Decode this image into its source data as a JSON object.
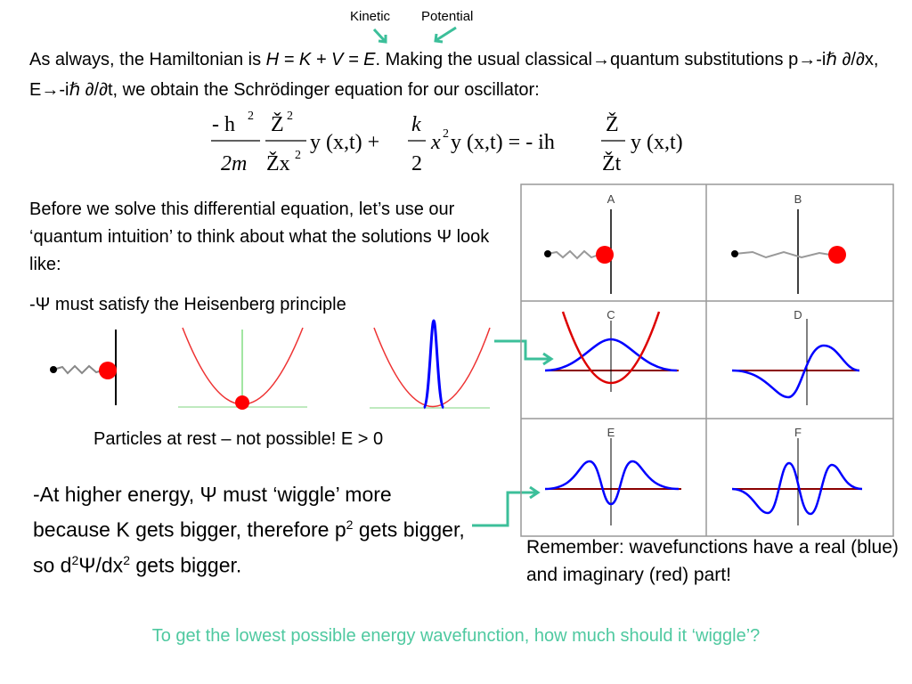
{
  "annotations": {
    "kinetic": "Kinetic",
    "potential": "Potential"
  },
  "intro": {
    "segments": [
      "As always, the Hamiltonian is ",
      "H = K + V = E",
      ". Making the usual  classical→quantum substitutions p→-iℏ ∂/∂x, E→-iℏ ∂/∂t, we obtain the Schrödinger equation for our oscillator:"
    ]
  },
  "equation": {
    "parts": [
      "-  h",
      "2",
      "2m",
      "Ž",
      "2",
      "Žx",
      "2",
      "y (x,t) +",
      "k",
      "2",
      "x",
      "2",
      "y (x,t) =  -  ih",
      "Ž",
      "Žt",
      "y (x,t)"
    ]
  },
  "intuition": {
    "text": "Before we solve this differential equation, let’s use our ‘quantum intuition’ to think about what the solutions Ψ look like:",
    "heisenberg": "-Ψ must satisfy the Heisenberg principle",
    "rest": "Particles at rest – not possible! E > 0"
  },
  "wiggle": {
    "segments": [
      "-At higher energy, Ψ must ‘wiggle’ more because K gets bigger, therefore p",
      "2",
      " gets bigger, so d",
      "2",
      "Ψ/dx",
      "2",
      " gets bigger."
    ]
  },
  "panels": {
    "labels": [
      "A",
      "B",
      "C",
      "D",
      "E",
      "F"
    ],
    "caption": "Remember: wavefunctions have a real (blue) and imaginary (red) part!"
  },
  "question": "To get the lowest possible energy wavefunction, how much should it ‘wiggle’?"
}
